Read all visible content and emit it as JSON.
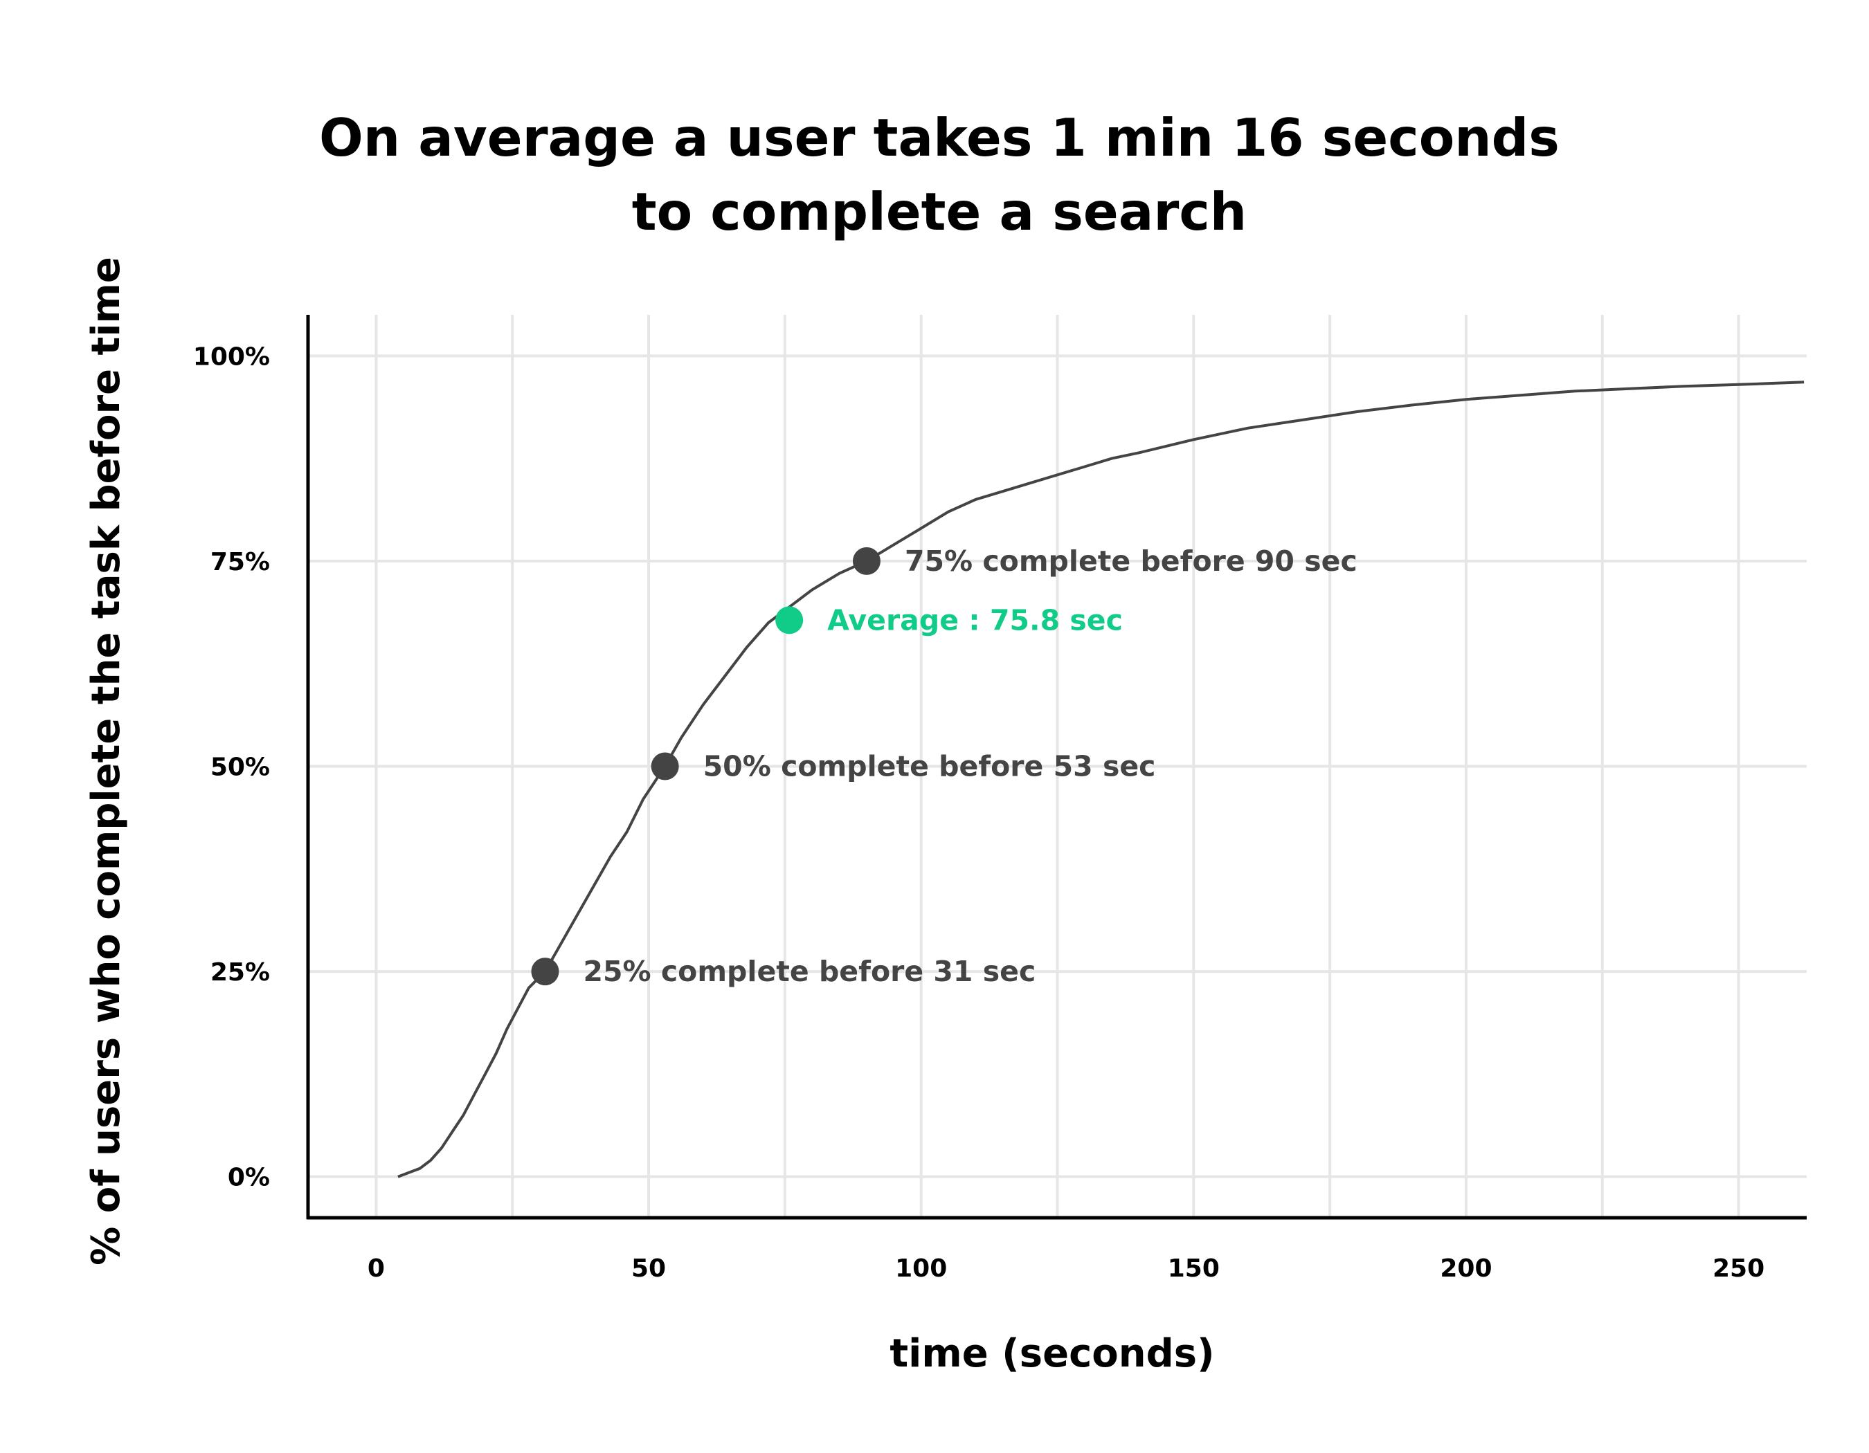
{
  "chart_data": {
    "type": "line",
    "title_lines": [
      "On average a user takes 1 min 16 seconds",
      "to complete a search"
    ],
    "xlabel": "time (seconds)",
    "ylabel": "% of users who complete the task before time",
    "xlim": [
      -12.5,
      262.5
    ],
    "ylim": [
      -5,
      105
    ],
    "x_ticks": [
      0,
      50,
      100,
      150,
      200,
      250
    ],
    "x_tick_labels": [
      "0",
      "50",
      "100",
      "150",
      "200",
      "250"
    ],
    "y_ticks": [
      0,
      25,
      50,
      75,
      100
    ],
    "y_tick_labels": [
      "0%",
      "25%",
      "50%",
      "75%",
      "100%"
    ],
    "x_grid_minor": [
      25,
      75,
      125,
      175,
      225
    ],
    "grid": true,
    "series": [
      {
        "color": "#444444",
        "x": [
          4,
          6,
          8,
          10,
          12,
          14,
          16,
          18,
          20,
          22,
          24,
          26,
          28,
          31,
          34,
          37,
          40,
          43,
          46,
          49,
          53,
          56,
          60,
          64,
          68,
          72,
          76,
          80,
          85,
          90,
          95,
          100,
          105,
          110,
          115,
          120,
          125,
          130,
          135,
          140,
          145,
          150,
          160,
          170,
          180,
          190,
          200,
          210,
          220,
          230,
          240,
          250,
          262
        ],
        "y": [
          0,
          0.5,
          1,
          2,
          3.5,
          5.5,
          7.5,
          10,
          12.5,
          15,
          18,
          20.5,
          23,
          25,
          28.5,
          32,
          35.5,
          39,
          42,
          46,
          50,
          53.5,
          57.5,
          61,
          64.5,
          67.5,
          69.5,
          71.5,
          73.5,
          75,
          77,
          79,
          81,
          82.5,
          83.5,
          84.5,
          85.5,
          86.5,
          87.5,
          88.2,
          89,
          89.8,
          91.2,
          92.2,
          93.2,
          94,
          94.7,
          95.2,
          95.7,
          96,
          96.3,
          96.5,
          96.8
        ]
      }
    ],
    "annotations": [
      {
        "x": 31,
        "y": 25,
        "label": "25% complete before 31 sec",
        "color": "#444444"
      },
      {
        "x": 53,
        "y": 50,
        "label": "50% complete before 53 sec",
        "color": "#444444"
      },
      {
        "x": 75.8,
        "y": 67.8,
        "label": "Average : 75.8 sec",
        "color": "#11cc88"
      },
      {
        "x": 90,
        "y": 75,
        "label": "75% complete before 90 sec",
        "color": "#444444"
      }
    ]
  }
}
